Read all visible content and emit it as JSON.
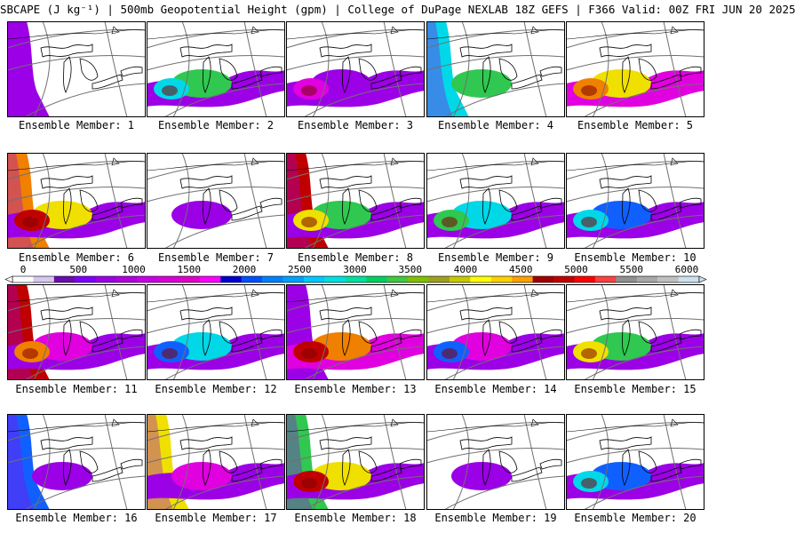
{
  "title": "SBCAPE (J kg⁻¹) | 500mb Geopotential Height (gpm) | College of DuPage NEXLAB 18Z GEFS | F366 Valid: 00Z FRI JUN 20 2025",
  "caption_prefix": "Ensemble Member: ",
  "members": [
    "1",
    "2",
    "3",
    "4",
    "5",
    "6",
    "7",
    "8",
    "9",
    "10",
    "11",
    "12",
    "13",
    "14",
    "15",
    "16",
    "17",
    "18",
    "19",
    "20"
  ],
  "colorbar": {
    "ticks": [
      "0",
      "500",
      "1000",
      "1500",
      "2000",
      "2500",
      "3000",
      "3500",
      "4000",
      "4500",
      "5000",
      "5500",
      "6000"
    ],
    "min": 0,
    "max": 6000,
    "step": 100,
    "colors": [
      "#ffffff",
      "#d6c6f0",
      "#6a0dad",
      "#7a00ff",
      "#9a00e6",
      "#b000e0",
      "#c800e8",
      "#d800d8",
      "#e000c8",
      "#ff00ff",
      "#0000cd",
      "#0050ff",
      "#0080ff",
      "#00a0ff",
      "#00c8ff",
      "#00e0e0",
      "#00e0a0",
      "#00d060",
      "#40c840",
      "#80c000",
      "#a0a020",
      "#c8c800",
      "#ffff00",
      "#ffd000",
      "#ffa000",
      "#a00000",
      "#c00000",
      "#ff0000",
      "#ff4040",
      "#909090",
      "#a8a8a8",
      "#c0c0c0",
      "#cde0ee"
    ]
  },
  "palette": {
    "purple": "#9b00e6",
    "magenta": "#e000e0",
    "blue": "#1060ff",
    "cyan": "#00d8e8",
    "green": "#30c850",
    "yellow": "#f0e000",
    "orange": "#f08000",
    "red": "#c00000",
    "darkred": "#800000",
    "contour": "#707070",
    "coast": "#000000"
  }
}
